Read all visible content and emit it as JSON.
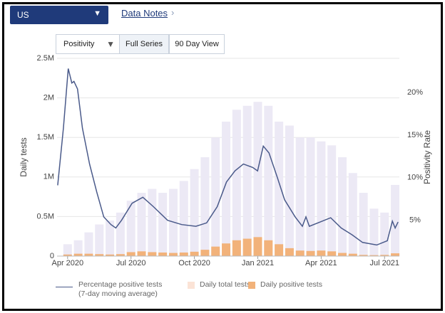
{
  "controls": {
    "region": "US",
    "data_notes": "Data Notes",
    "metric": "Positivity",
    "buttons": [
      "Full Series",
      "90 Day View"
    ]
  },
  "chart_data": {
    "type": "bar-line",
    "ylabel": "Daily tests",
    "y2label": "Positivity Rate",
    "xlim": [
      -0.5,
      15.7
    ],
    "xticks": [
      {
        "value": 0,
        "label": "Apr 2020"
      },
      {
        "value": 3,
        "label": "Jul 2020"
      },
      {
        "value": 6,
        "label": "Oct 2020"
      },
      {
        "value": 9,
        "label": "Jan 2021"
      },
      {
        "value": 12,
        "label": "Apr 2021"
      },
      {
        "value": 15,
        "label": "Jul 2021"
      }
    ],
    "ylim": [
      0,
      2500000
    ],
    "yticks": [
      0,
      {
        "value": 500000,
        "label": "0.5M"
      },
      {
        "value": 1000000,
        "label": "1M"
      },
      {
        "value": 1500000,
        "label": "1.5M"
      },
      {
        "value": 2000000,
        "label": "2M"
      },
      {
        "value": 2500000,
        "label": "2.5M"
      }
    ],
    "y2lim": [
      0.8,
      24
    ],
    "y2ticks": [
      {
        "value": 5,
        "label": "5%"
      },
      {
        "value": 10,
        "label": "10%"
      },
      {
        "value": 15,
        "label": "15%"
      },
      {
        "value": 20,
        "label": "20%"
      }
    ],
    "grid": true,
    "series": [
      {
        "name": "Daily total tests",
        "kind": "bar",
        "color": "#ece9f5",
        "x": [
          0,
          0.5,
          1,
          1.5,
          2,
          2.5,
          3,
          3.5,
          4,
          4.5,
          5,
          5.5,
          6,
          6.5,
          7,
          7.5,
          8,
          8.5,
          9,
          9.5,
          10,
          10.5,
          11,
          11.5,
          12,
          12.5,
          13,
          13.5,
          14,
          14.5,
          15,
          15.5
        ],
        "values": [
          150000,
          200000,
          300000,
          400000,
          450000,
          550000,
          700000,
          800000,
          850000,
          800000,
          850000,
          950000,
          1100000,
          1250000,
          1500000,
          1700000,
          1850000,
          1900000,
          1950000,
          1900000,
          1700000,
          1650000,
          1500000,
          1500000,
          1450000,
          1400000,
          1250000,
          1050000,
          800000,
          600000,
          550000,
          900000
        ]
      },
      {
        "name": "Daily positive tests",
        "kind": "bar",
        "color": "#f2b27a",
        "x": [
          0,
          0.5,
          1,
          1.5,
          2,
          2.5,
          3,
          3.5,
          4,
          4.5,
          5,
          5.5,
          6,
          6.5,
          7,
          7.5,
          8,
          8.5,
          9,
          9.5,
          10,
          10.5,
          11,
          11.5,
          12,
          12.5,
          13,
          13.5,
          14,
          14.5,
          15,
          15.5
        ],
        "values": [
          20000,
          30000,
          30000,
          25000,
          20000,
          25000,
          50000,
          60000,
          50000,
          45000,
          40000,
          45000,
          55000,
          80000,
          120000,
          160000,
          200000,
          220000,
          240000,
          200000,
          150000,
          100000,
          70000,
          65000,
          70000,
          60000,
          40000,
          30000,
          15000,
          12000,
          15000,
          35000
        ]
      },
      {
        "name": "Percentage positive tests (7-day moving average)",
        "kind": "line",
        "axis": "y2",
        "color": "#4a5a8a",
        "x": [
          -0.47,
          -0.2,
          0.03,
          0.2,
          0.3,
          0.47,
          0.7,
          1.04,
          1.38,
          1.71,
          2.05,
          2.28,
          2.55,
          3.05,
          3.56,
          4.06,
          4.73,
          5.4,
          6.07,
          6.58,
          7.08,
          7.52,
          7.92,
          8.32,
          8.76,
          8.99,
          9.26,
          9.53,
          9.93,
          10.27,
          10.77,
          11.11,
          11.28,
          11.44,
          11.95,
          12.45,
          12.95,
          13.46,
          13.96,
          14.63,
          15.13,
          15.37,
          15.5,
          15.64
        ],
        "values": [
          9.1,
          15.8,
          22.8,
          21.1,
          21.3,
          20.4,
          15.8,
          11.6,
          8.3,
          5.4,
          4.5,
          4.1,
          5.0,
          7.0,
          7.7,
          6.6,
          5.0,
          4.5,
          4.3,
          4.7,
          6.6,
          9.5,
          10.8,
          11.6,
          11.2,
          10.8,
          13.7,
          12.9,
          10.0,
          7.4,
          5.4,
          4.3,
          5.4,
          4.3,
          4.8,
          5.3,
          4.1,
          3.3,
          2.4,
          2.1,
          2.6,
          4.9,
          4.1,
          4.8
        ]
      }
    ]
  }
}
